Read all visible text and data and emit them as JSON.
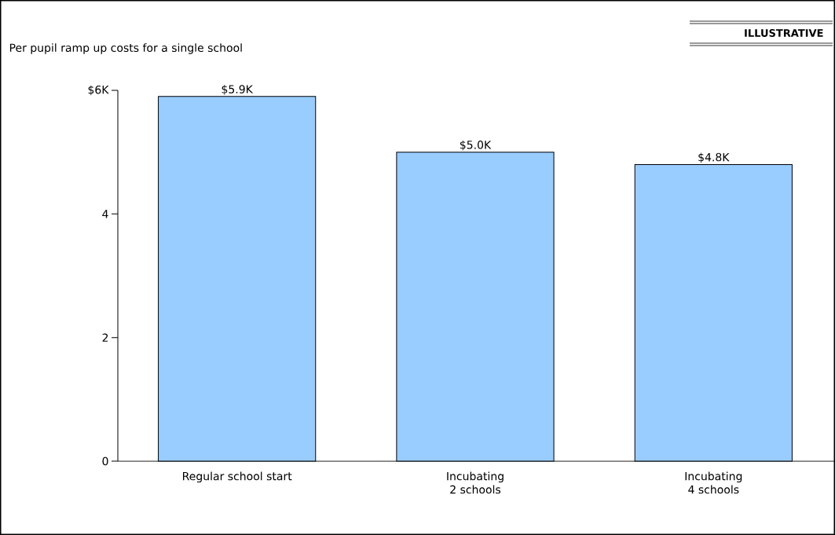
{
  "chart_data": {
    "type": "bar",
    "title": "Per pupil ramp up costs for a single school",
    "categories": [
      "Regular school start",
      "Incubating 2 schools",
      "Incubating 4 schools"
    ],
    "values": [
      5.9,
      5.0,
      4.8
    ],
    "value_labels": [
      "$5.9K",
      "$5.0K",
      "$4.8K"
    ],
    "color": "#99ccff",
    "ylim": [
      0,
      6
    ],
    "yticks": [
      0,
      2,
      4,
      {
        "value": 6,
        "label": "$6K"
      }
    ],
    "grid": false,
    "annotations": [
      "ILLUSTRATIVE"
    ]
  }
}
